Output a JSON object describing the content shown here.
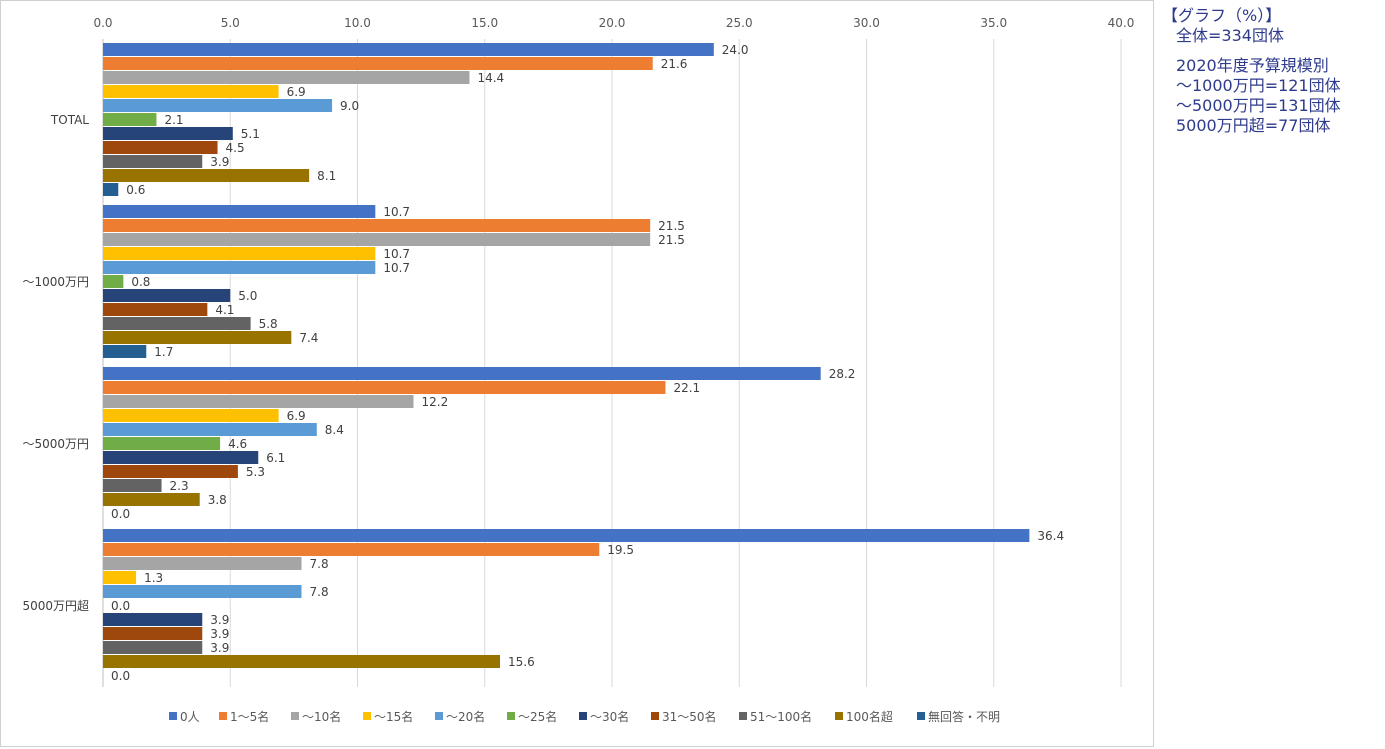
{
  "chart_data": {
    "type": "bar",
    "orientation": "horizontal",
    "categories": [
      "TOTAL",
      "～1000万円",
      "～5000万円",
      "5000万円超"
    ],
    "xlim": [
      0,
      40
    ],
    "x_ticks": [
      "0.0",
      "5.0",
      "10.0",
      "15.0",
      "20.0",
      "25.0",
      "30.0",
      "35.0",
      "40.0"
    ],
    "grid": true,
    "legend_position": "bottom",
    "series": [
      {
        "name": "0人",
        "color": "#4472C4",
        "values": [
          24.0,
          10.7,
          28.2,
          36.4
        ]
      },
      {
        "name": "1～5名",
        "color": "#ED7D31",
        "values": [
          21.6,
          21.5,
          22.1,
          19.5
        ]
      },
      {
        "name": "～10名",
        "color": "#A5A5A5",
        "values": [
          14.4,
          21.5,
          12.2,
          7.8
        ]
      },
      {
        "name": "～15名",
        "color": "#FFC000",
        "values": [
          6.9,
          10.7,
          6.9,
          1.3
        ]
      },
      {
        "name": "～20名",
        "color": "#5B9BD5",
        "values": [
          9.0,
          10.7,
          8.4,
          7.8
        ]
      },
      {
        "name": "～25名",
        "color": "#70AD47",
        "values": [
          2.1,
          0.8,
          4.6,
          0.0
        ]
      },
      {
        "name": "～30名",
        "color": "#264478",
        "values": [
          5.1,
          5.0,
          6.1,
          3.9
        ]
      },
      {
        "name": "31～50名",
        "color": "#9E480E",
        "values": [
          4.5,
          4.1,
          5.3,
          3.9
        ]
      },
      {
        "name": "51～100名",
        "color": "#636363",
        "values": [
          3.9,
          5.8,
          2.3,
          3.9
        ]
      },
      {
        "name": "100名超",
        "color": "#997300",
        "values": [
          8.1,
          7.4,
          3.8,
          15.6
        ]
      },
      {
        "name": "無回答・不明",
        "color": "#255E91",
        "values": [
          0.6,
          1.7,
          0.0,
          0.0
        ]
      }
    ]
  },
  "notes": {
    "title": "【グラフ（%）】",
    "total": "全体=334団体",
    "lines": [
      "2020年度予算規模別",
      "～1000万円=121団体",
      "～5000万円=131団体",
      "5000万円超=77団体"
    ]
  }
}
